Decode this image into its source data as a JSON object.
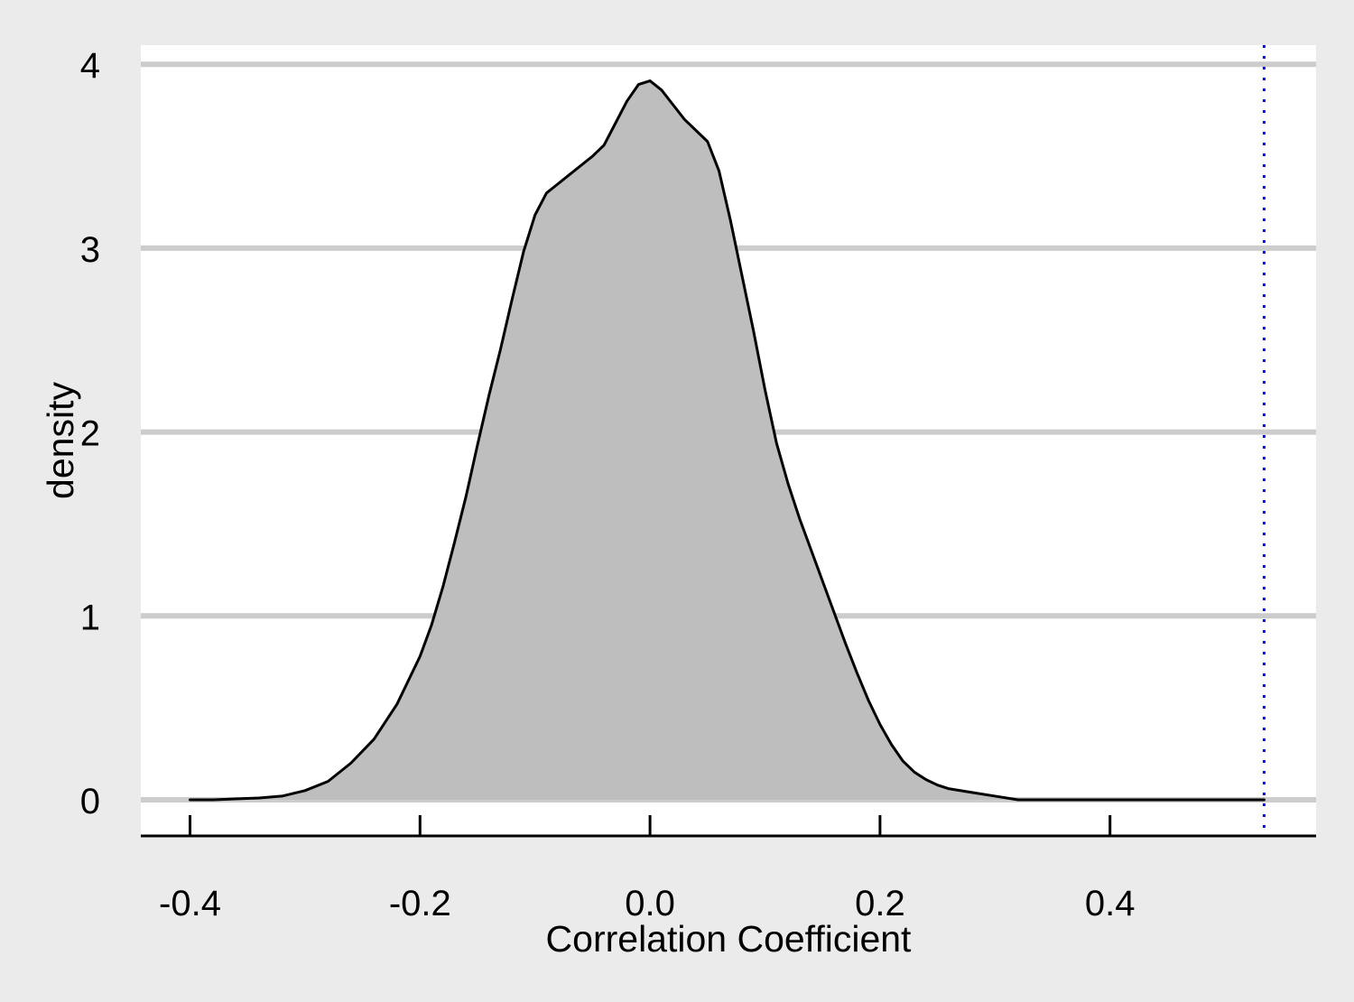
{
  "chart_data": {
    "type": "area",
    "title": "",
    "xlabel": "Correlation Coefficient",
    "ylabel": "density",
    "xlim": [
      -0.43,
      0.58
    ],
    "ylim": [
      -0.2,
      4.1
    ],
    "x_ticks": [
      -0.4,
      -0.2,
      0.0,
      0.2,
      0.4
    ],
    "x_tick_labels": [
      "-0.4",
      "-0.2",
      "0.0",
      "0.2",
      "0.4"
    ],
    "y_ticks": [
      0,
      1,
      2,
      3,
      4
    ],
    "y_tick_labels": [
      "0",
      "1",
      "2",
      "3",
      "4"
    ],
    "grid": "horizontal",
    "legend": "none",
    "series": [
      {
        "x": [
          -0.4,
          -0.38,
          -0.34,
          -0.32,
          -0.3,
          -0.28,
          -0.26,
          -0.24,
          -0.22,
          -0.2,
          -0.19,
          -0.18,
          -0.17,
          -0.16,
          -0.15,
          -0.14,
          -0.13,
          -0.12,
          -0.11,
          -0.1,
          -0.09,
          -0.08,
          -0.07,
          -0.06,
          -0.05,
          -0.04,
          -0.03,
          -0.02,
          -0.01,
          0.0,
          0.01,
          0.02,
          0.03,
          0.05,
          0.06,
          0.07,
          0.08,
          0.09,
          0.1,
          0.11,
          0.12,
          0.13,
          0.14,
          0.15,
          0.16,
          0.17,
          0.18,
          0.19,
          0.2,
          0.21,
          0.22,
          0.23,
          0.24,
          0.25,
          0.26,
          0.28,
          0.3,
          0.32,
          0.35,
          0.4,
          0.45,
          0.5,
          0.534
        ],
        "y": [
          0.0,
          0.0,
          0.01,
          0.02,
          0.05,
          0.1,
          0.2,
          0.33,
          0.52,
          0.78,
          0.95,
          1.16,
          1.4,
          1.65,
          1.93,
          2.2,
          2.45,
          2.72,
          2.98,
          3.18,
          3.3,
          3.35,
          3.4,
          3.45,
          3.5,
          3.56,
          3.68,
          3.8,
          3.89,
          3.91,
          3.86,
          3.78,
          3.7,
          3.58,
          3.42,
          3.15,
          2.85,
          2.55,
          2.23,
          1.94,
          1.72,
          1.53,
          1.36,
          1.19,
          1.02,
          0.85,
          0.69,
          0.54,
          0.41,
          0.3,
          0.21,
          0.15,
          0.11,
          0.08,
          0.06,
          0.04,
          0.02,
          0.0,
          0.0,
          0.0,
          0.0,
          0.0,
          0.0
        ],
        "fill": "#bebebe",
        "line_color": "#000000"
      }
    ],
    "reference_line": {
      "x": 0.534,
      "style": "dotted",
      "color": "#0000ff"
    },
    "colors": {
      "page_background": "#ebebeb",
      "panel_background": "#ffffff",
      "grid": "#cccccc",
      "axis": "#000000"
    }
  }
}
